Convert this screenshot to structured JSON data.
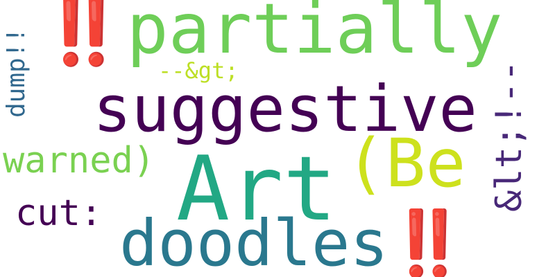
{
  "words": [
    {
      "text": "‼️partially",
      "color": "#6ece58"
    },
    {
      "text": "suggestive",
      "color": "#440154"
    },
    {
      "text": "Art",
      "color": "#22a884"
    },
    {
      "text": "(Be",
      "color": "#cde11d"
    },
    {
      "text": "doodles‼️",
      "color": "#2a788e"
    },
    {
      "text": "warned)",
      "color": "#7ad151"
    },
    {
      "text": "cut:",
      "color": "#440154"
    },
    {
      "text": "--&gt;",
      "color": "#bddf26"
    },
    {
      "text": "dump!!",
      "color": "#31688e"
    },
    {
      "text": "&lt;!--",
      "color": "#482878"
    }
  ]
}
